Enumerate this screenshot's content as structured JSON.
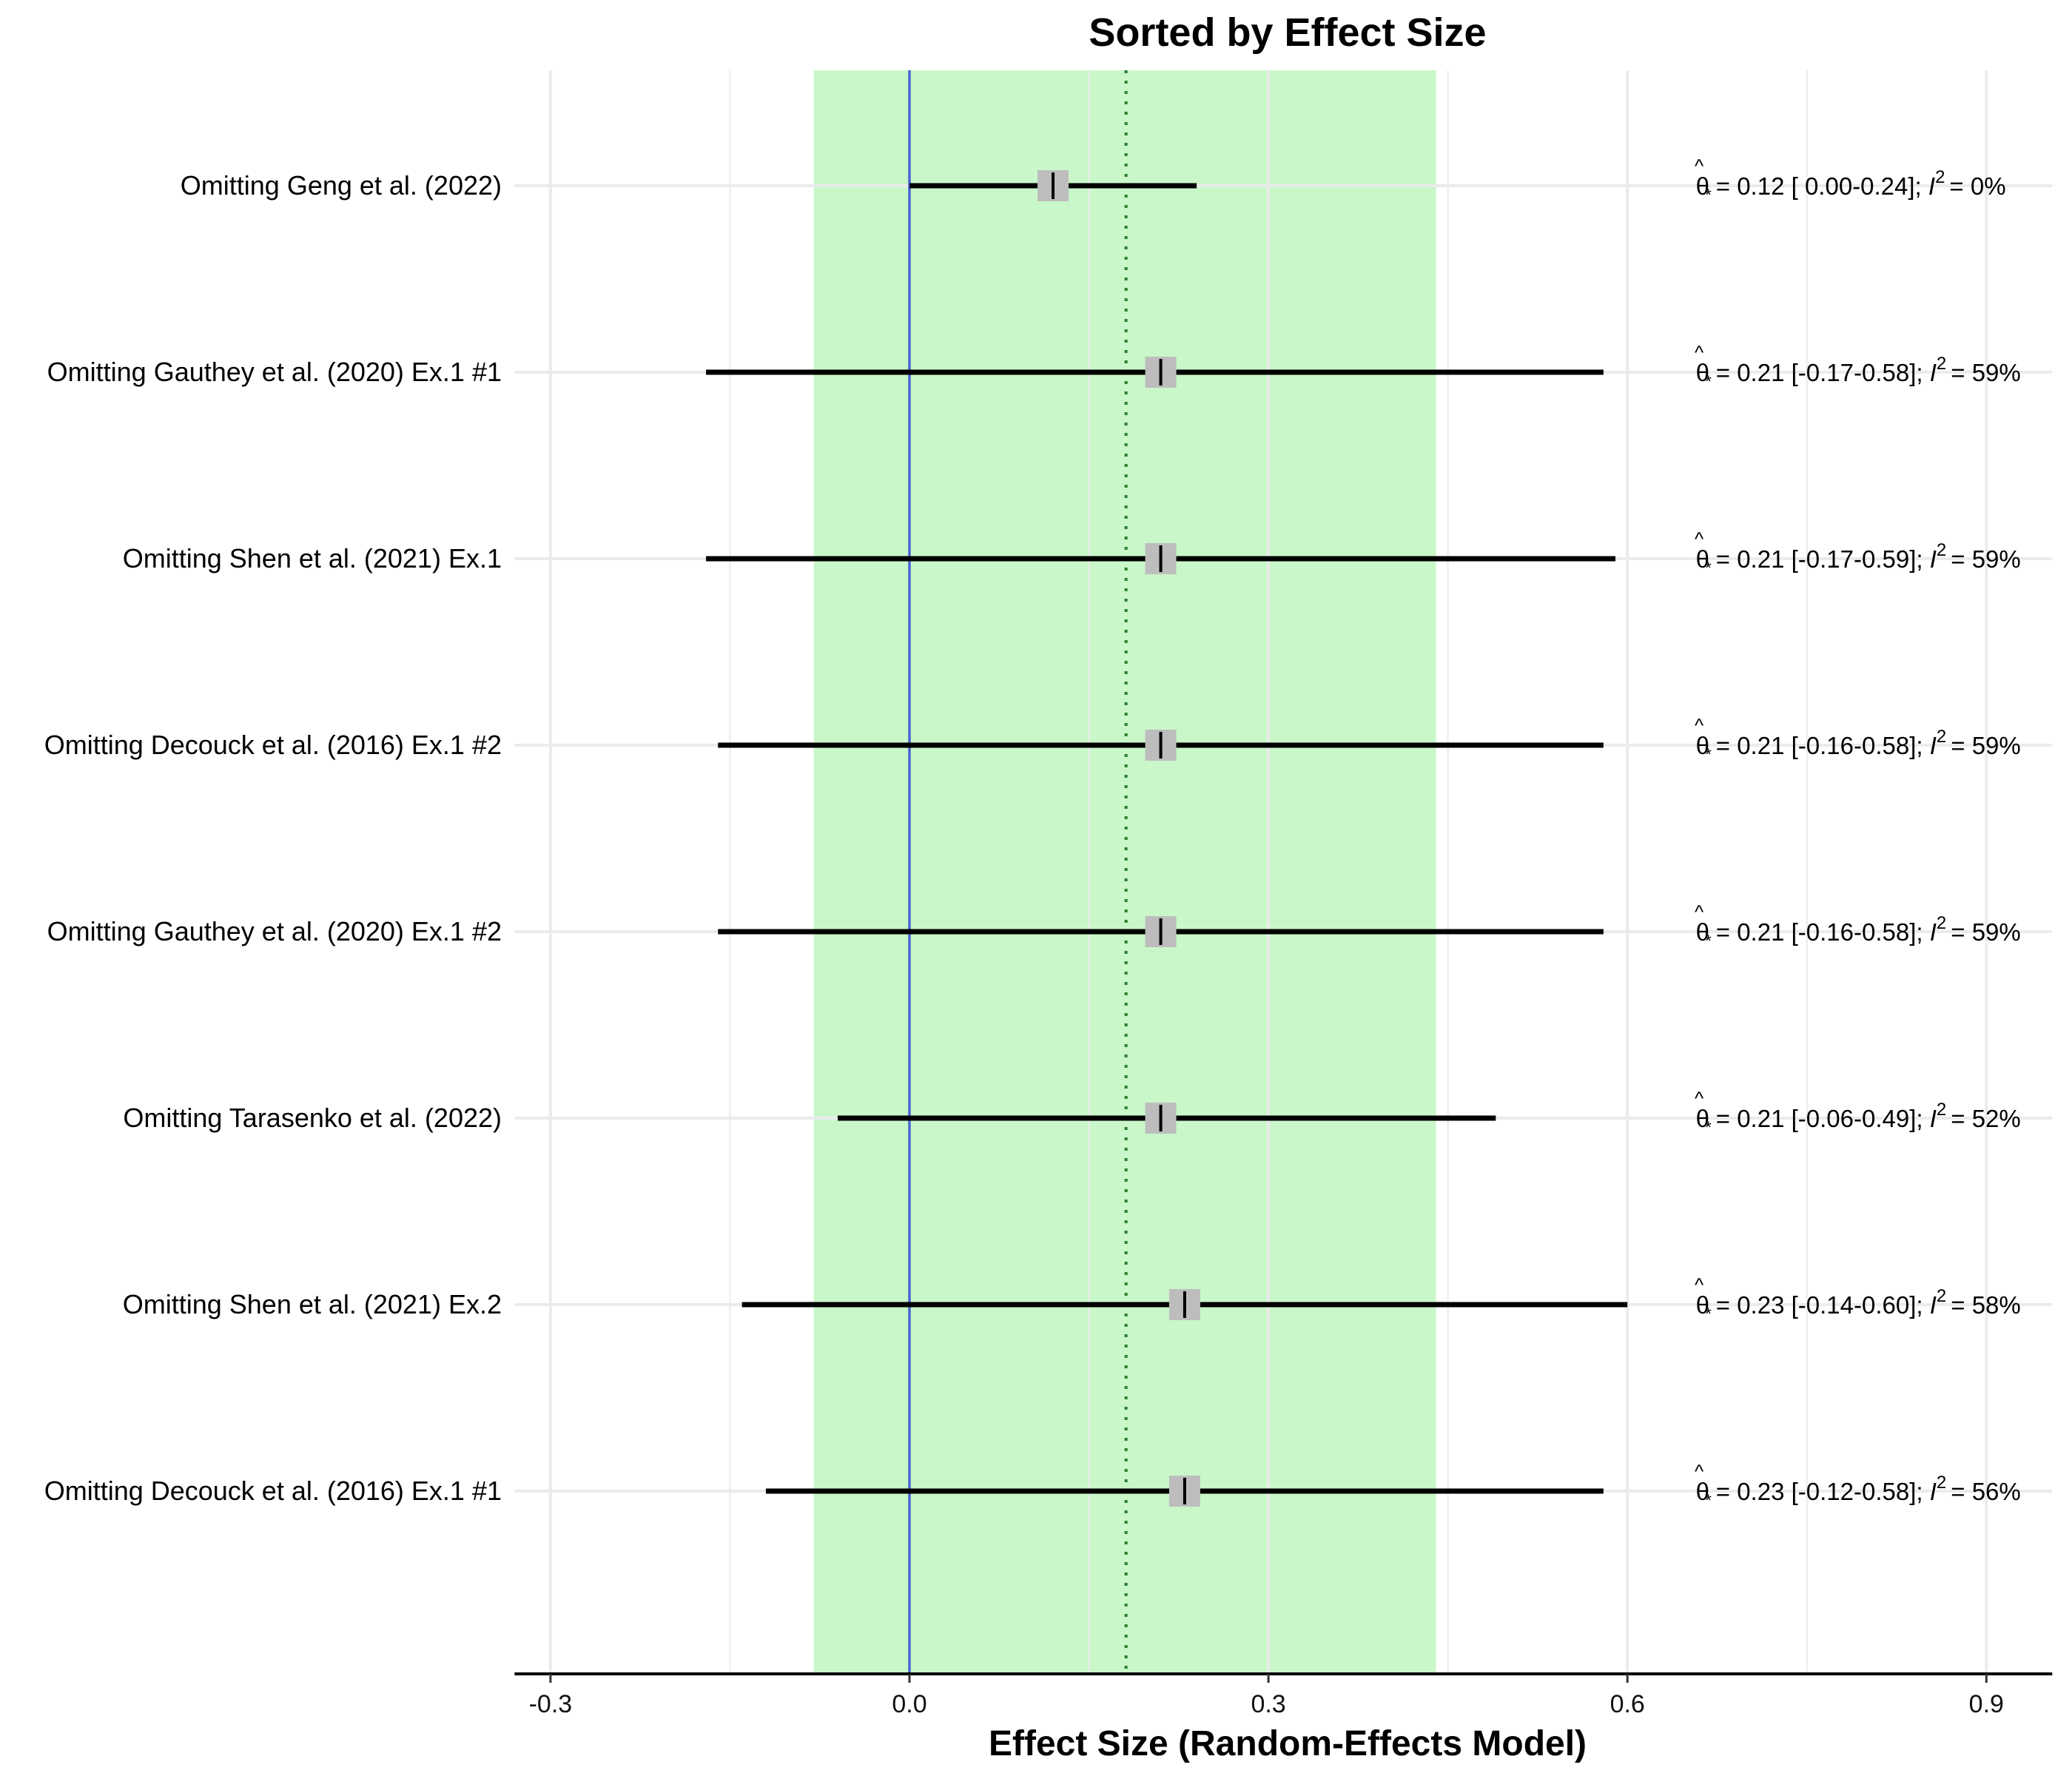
{
  "chart_data": {
    "type": "forest",
    "title": "Sorted by Effect Size",
    "xlabel": "Effect Size (Random-Effects Model)",
    "xlim": [
      -0.33,
      0.955
    ],
    "xticks": [
      -0.3,
      0.0,
      0.3,
      0.6,
      0.9
    ],
    "xtick_labels": [
      "-0.3",
      "0.0",
      "0.3",
      "0.6",
      "0.9"
    ],
    "null_line": 0.0,
    "pooled_estimate": 0.181,
    "prediction_interval": [
      -0.08,
      0.44
    ],
    "grid": true,
    "colors": {
      "prediction_band": "#c9f7c9",
      "null_line": "#4466cc",
      "pooled_line": "#2e7d32",
      "ci": "#000000",
      "marker_box": "#bdbdbd",
      "grid": "#ebebeb"
    },
    "rows": [
      {
        "label": "Omitting Geng et al. (2022)",
        "estimate": 0.12,
        "ci_low": 0.0,
        "ci_high": 0.24,
        "i2": "0%",
        "annotation": "= 0.12 [ 0.00-0.24]; ",
        "i2_text": "=  0%"
      },
      {
        "label": "Omitting Gauthey et al. (2020) Ex.1 #1",
        "estimate": 0.21,
        "ci_low": -0.17,
        "ci_high": 0.58,
        "i2": "59%",
        "annotation": "= 0.21 [-0.17-0.58]; ",
        "i2_text": "= 59%"
      },
      {
        "label": "Omitting Shen et al. (2021) Ex.1",
        "estimate": 0.21,
        "ci_low": -0.17,
        "ci_high": 0.59,
        "i2": "59%",
        "annotation": "= 0.21 [-0.17-0.59]; ",
        "i2_text": "= 59%"
      },
      {
        "label": "Omitting Decouck et al. (2016) Ex.1 #2",
        "estimate": 0.21,
        "ci_low": -0.16,
        "ci_high": 0.58,
        "i2": "59%",
        "annotation": "= 0.21 [-0.16-0.58]; ",
        "i2_text": "= 59%"
      },
      {
        "label": "Omitting Gauthey et al. (2020) Ex.1 #2",
        "estimate": 0.21,
        "ci_low": -0.16,
        "ci_high": 0.58,
        "i2": "59%",
        "annotation": "= 0.21 [-0.16-0.58]; ",
        "i2_text": "= 59%"
      },
      {
        "label": "Omitting Tarasenko et al. (2022)",
        "estimate": 0.21,
        "ci_low": -0.06,
        "ci_high": 0.49,
        "i2": "52%",
        "annotation": "= 0.21 [-0.06-0.49]; ",
        "i2_text": "= 52%"
      },
      {
        "label": "Omitting Shen et al. (2021) Ex.2",
        "estimate": 0.23,
        "ci_low": -0.14,
        "ci_high": 0.6,
        "i2": "58%",
        "annotation": "= 0.23 [-0.14-0.60]; ",
        "i2_text": "= 58%"
      },
      {
        "label": "Omitting Decouck et al. (2016) Ex.1 #1",
        "estimate": 0.23,
        "ci_low": -0.12,
        "ci_high": 0.58,
        "i2": "56%",
        "annotation": "= 0.23 [-0.12-0.58]; ",
        "i2_text": "= 56%"
      }
    ]
  }
}
